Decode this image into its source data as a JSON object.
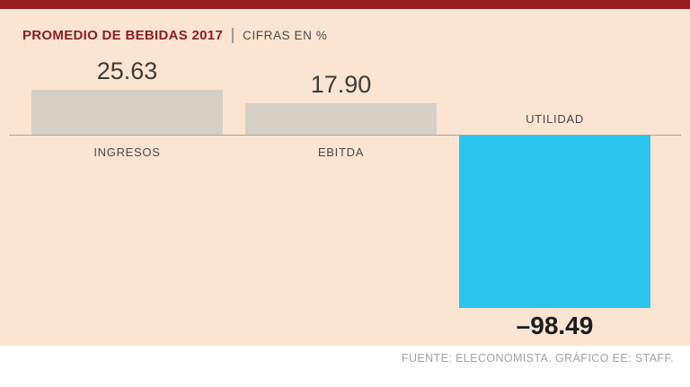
{
  "header": {
    "title": "PROMEDIO DE BEBIDAS 2017",
    "subtitle": "CIFRAS EN %"
  },
  "footer": {
    "source": "FUENTE: ELECONOMISTA. GRÁFICO EE: STAFF."
  },
  "colors": {
    "background": "#fbe4d1",
    "accent_red": "#9a1c20",
    "title_red": "#8e1b1f",
    "bar_positive": "#d6cfc3",
    "bar_negative": "#2bc4ed",
    "axis_line": "#a5a0a0",
    "footer_background": "#ffffff",
    "footer_text": "#a3a3a3"
  },
  "chart_data": {
    "type": "bar",
    "title": "PROMEDIO DE BEBIDAS 2017",
    "subtitle": "CIFRAS EN %",
    "unit": "%",
    "categories": [
      "INGRESOS",
      "EBITDA",
      "UTILIDAD"
    ],
    "values": [
      25.63,
      17.9,
      -98.49
    ],
    "value_labels": [
      "25.63",
      "17.90",
      "–98.49"
    ],
    "baseline": 0,
    "ylim": [
      -100,
      30
    ],
    "grid": false,
    "legend": false
  }
}
